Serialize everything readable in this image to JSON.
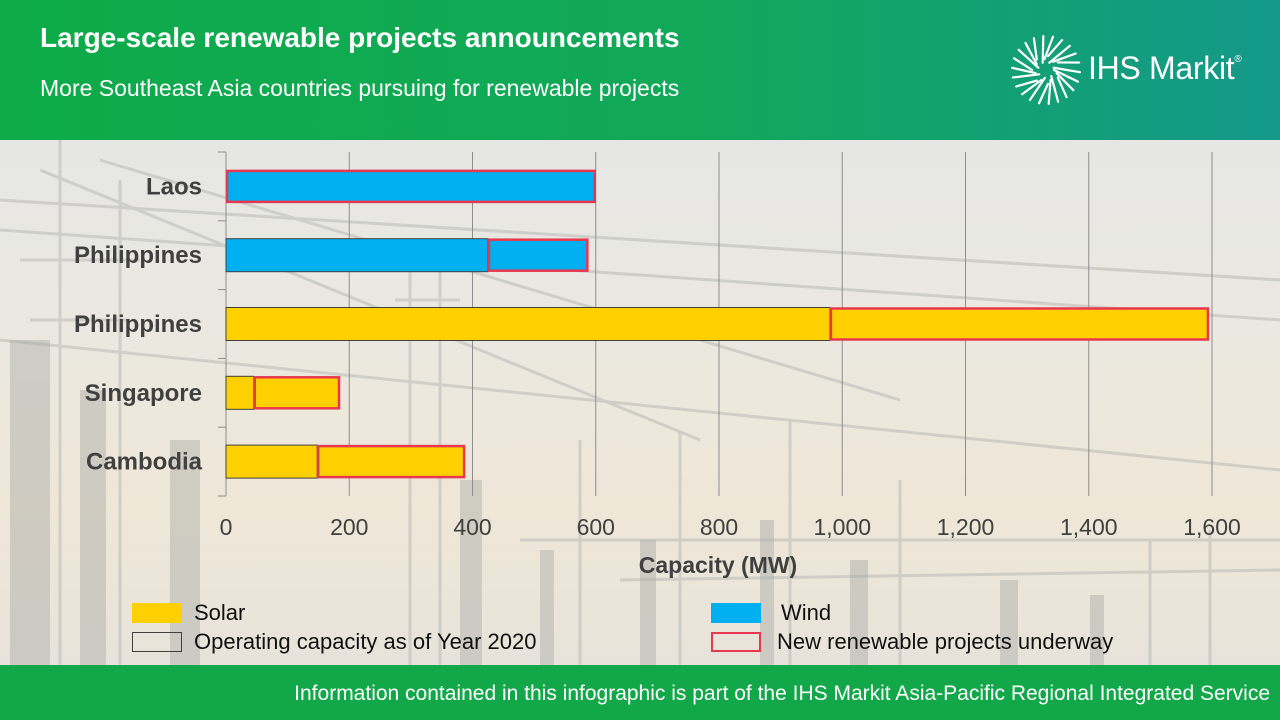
{
  "header": {
    "title": "Large-scale renewable projects announcements",
    "subtitle": "More Southeast Asia countries pursuing for renewable projects",
    "logo_text": "IHS Markit",
    "logo_mark": "®"
  },
  "colors": {
    "solar": "#ffd000",
    "wind": "#00b0f0",
    "operating_border": "#404040",
    "new_border": "#e8384f",
    "header_green": "#0eab48",
    "footer_green": "#12a84a"
  },
  "chart_data": {
    "type": "bar",
    "orientation": "horizontal",
    "stacked": true,
    "categories": [
      "Laos",
      "Philippines",
      "Philippines",
      "Singapore",
      "Cambodia"
    ],
    "series": [
      {
        "name": "Operating capacity as of Year 2020",
        "values": [
          0,
          425,
          980,
          45,
          148
        ]
      },
      {
        "name": "New renewable projects underway",
        "values": [
          600,
          163,
          615,
          140,
          240
        ]
      }
    ],
    "technology": [
      "Wind",
      "Wind",
      "Solar",
      "Solar",
      "Solar"
    ],
    "xlabel": "Capacity (MW)",
    "xlim": [
      0,
      1600
    ],
    "xticks": [
      "0",
      "200",
      "400",
      "600",
      "800",
      "1,000",
      "1,200",
      "1,400",
      "1,600"
    ],
    "grid": true,
    "legend": {
      "placement": "bottom",
      "entries": [
        {
          "label": "Solar",
          "style": "fill",
          "color": "#ffd000"
        },
        {
          "label": "Wind",
          "style": "fill",
          "color": "#00b0f0"
        },
        {
          "label": "Operating capacity as of Year 2020",
          "style": "outline",
          "color": "#404040"
        },
        {
          "label": "New renewable projects underway",
          "style": "outline",
          "color": "#e8384f"
        }
      ]
    }
  },
  "footer": {
    "text": "Information contained in this infographic is part of the IHS Markit Asia-Pacific  Regional Integrated Service"
  }
}
